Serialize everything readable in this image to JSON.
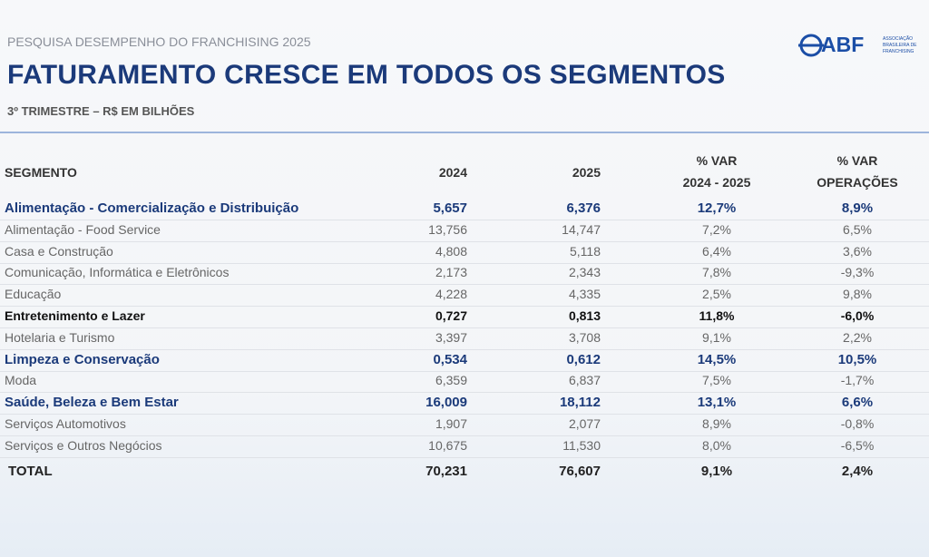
{
  "header": {
    "kicker": "PESQUISA DESEMPENHO DO FRANCHISING 2025",
    "title": "FATURAMENTO CRESCE EM TODOS OS SEGMENTOS",
    "subtitle": "3º TRIMESTRE – R$ EM BILHÕES",
    "logo": "ABF",
    "logo_caption": [
      "ASSOCIAÇÃO",
      "BRASILEIRA DE",
      "FRANCHISING"
    ]
  },
  "table": {
    "columns": [
      [
        "SEGMENTO"
      ],
      [
        "2024"
      ],
      [
        "2025"
      ],
      [
        "% VAR",
        "2024 - 2025"
      ],
      [
        "% VAR",
        "OPERAÇÕES"
      ]
    ],
    "rows": [
      [
        "Alimentação - Comercialização e Distribuição",
        "5,657",
        "6,376",
        "12,7%",
        "8,9%"
      ],
      [
        "Alimentação - Food Service",
        "13,756",
        "14,747",
        "7,2%",
        "6,5%"
      ],
      [
        "Casa e Construção",
        "4,808",
        "5,118",
        "6,4%",
        "3,6%"
      ],
      [
        "Comunicação, Informática e Eletrônicos",
        "2,173",
        "2,343",
        "7,8%",
        "-9,3%"
      ],
      [
        "Educação",
        "4,228",
        "4,335",
        "2,5%",
        "9,8%"
      ],
      [
        "Entretenimento e Lazer",
        "0,727",
        "0,813",
        "11,8%",
        "-6,0%"
      ],
      [
        "Hotelaria e Turismo",
        "3,397",
        "3,708",
        "9,1%",
        "2,2%"
      ],
      [
        "Limpeza e  Conservação",
        "0,534",
        "0,612",
        "14,5%",
        "10,5%"
      ],
      [
        "Moda",
        "6,359",
        "6,837",
        "7,5%",
        "-1,7%"
      ],
      [
        "Saúde, Beleza e Bem Estar",
        "16,009",
        "18,112",
        "13,1%",
        "6,6%"
      ],
      [
        "Serviços Automotivos",
        "1,907",
        "2,077",
        "8,9%",
        "-0,8%"
      ],
      [
        "Serviços e Outros Negócios",
        "10,675",
        "11,530",
        "8,0%",
        "-6,5%"
      ]
    ],
    "total": [
      "TOTAL",
      "70,231",
      "76,607",
      "9,1%",
      "2,4%"
    ]
  }
}
